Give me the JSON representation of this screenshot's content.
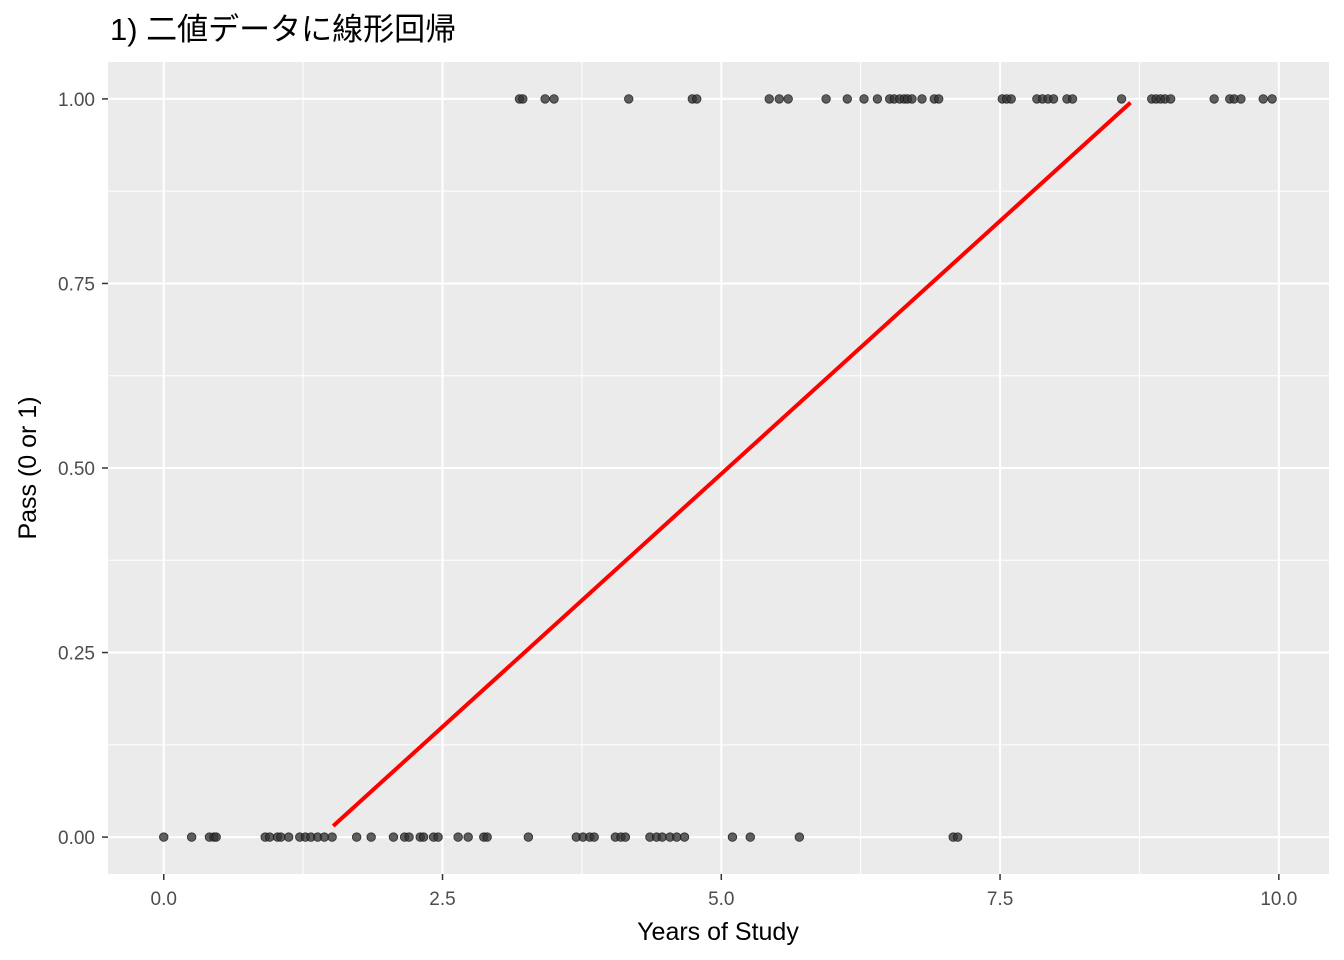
{
  "chart_data": {
    "type": "scatter",
    "title": "1) 二値データに線形回帰",
    "xlabel": "Years of Study",
    "ylabel": "Pass (0 or 1)",
    "xlim": [
      -0.5,
      10.45
    ],
    "ylim": [
      -0.05,
      1.05
    ],
    "x_ticks": [
      0,
      2.5,
      5,
      7.5,
      10
    ],
    "x_tick_labels": [
      "0.0",
      "2.5",
      "5.0",
      "7.5",
      "10.0"
    ],
    "y_ticks": [
      0,
      0.25,
      0.5,
      0.75,
      1
    ],
    "y_tick_labels": [
      "0.00",
      "0.25",
      "0.50",
      "0.75",
      "1.00"
    ],
    "grid": true,
    "legend": "none",
    "colors": {
      "panel": "#ebebeb",
      "grid": "#ffffff",
      "points": "#333333",
      "fit_line": "#ff0000"
    },
    "series": [
      {
        "type": "scatter",
        "points": [
          [
            0.0,
            0
          ],
          [
            0.25,
            0
          ],
          [
            0.41,
            0
          ],
          [
            0.45,
            0
          ],
          [
            0.47,
            0
          ],
          [
            0.91,
            0
          ],
          [
            0.95,
            0
          ],
          [
            1.02,
            0
          ],
          [
            1.05,
            0
          ],
          [
            1.12,
            0
          ],
          [
            1.22,
            0
          ],
          [
            1.27,
            0
          ],
          [
            1.32,
            0
          ],
          [
            1.38,
            0
          ],
          [
            1.44,
            0
          ],
          [
            1.51,
            0
          ],
          [
            1.73,
            0
          ],
          [
            1.86,
            0
          ],
          [
            2.06,
            0
          ],
          [
            2.16,
            0
          ],
          [
            2.2,
            0
          ],
          [
            2.3,
            0
          ],
          [
            2.33,
            0
          ],
          [
            2.42,
            0
          ],
          [
            2.46,
            0
          ],
          [
            2.64,
            0
          ],
          [
            2.73,
            0
          ],
          [
            2.87,
            0
          ],
          [
            2.9,
            0
          ],
          [
            3.27,
            0
          ],
          [
            3.7,
            0
          ],
          [
            3.76,
            0
          ],
          [
            3.82,
            0
          ],
          [
            3.86,
            0
          ],
          [
            4.05,
            0
          ],
          [
            4.1,
            0
          ],
          [
            4.14,
            0
          ],
          [
            4.36,
            0
          ],
          [
            4.42,
            0
          ],
          [
            4.47,
            0
          ],
          [
            4.54,
            0
          ],
          [
            4.6,
            0
          ],
          [
            4.67,
            0
          ],
          [
            5.1,
            0
          ],
          [
            5.26,
            0
          ],
          [
            5.7,
            0
          ],
          [
            7.08,
            0
          ],
          [
            7.12,
            0
          ],
          [
            3.19,
            1
          ],
          [
            3.22,
            1
          ],
          [
            3.42,
            1
          ],
          [
            3.5,
            1
          ],
          [
            4.17,
            1
          ],
          [
            4.74,
            1
          ],
          [
            4.78,
            1
          ],
          [
            5.43,
            1
          ],
          [
            5.52,
            1
          ],
          [
            5.6,
            1
          ],
          [
            5.94,
            1
          ],
          [
            6.13,
            1
          ],
          [
            6.28,
            1
          ],
          [
            6.4,
            1
          ],
          [
            6.51,
            1
          ],
          [
            6.55,
            1
          ],
          [
            6.6,
            1
          ],
          [
            6.64,
            1
          ],
          [
            6.67,
            1
          ],
          [
            6.71,
            1
          ],
          [
            6.8,
            1
          ],
          [
            6.91,
            1
          ],
          [
            6.95,
            1
          ],
          [
            7.52,
            1
          ],
          [
            7.56,
            1
          ],
          [
            7.6,
            1
          ],
          [
            7.83,
            1
          ],
          [
            7.88,
            1
          ],
          [
            7.93,
            1
          ],
          [
            7.98,
            1
          ],
          [
            8.1,
            1
          ],
          [
            8.15,
            1
          ],
          [
            8.59,
            1
          ],
          [
            8.86,
            1
          ],
          [
            8.9,
            1
          ],
          [
            8.94,
            1
          ],
          [
            8.98,
            1
          ],
          [
            9.03,
            1
          ],
          [
            9.42,
            1
          ],
          [
            9.56,
            1
          ],
          [
            9.6,
            1
          ],
          [
            9.66,
            1
          ],
          [
            9.86,
            1
          ],
          [
            9.94,
            1
          ]
        ]
      },
      {
        "type": "line",
        "points": [
          [
            1.52,
            0.015
          ],
          [
            8.67,
            0.995
          ]
        ]
      }
    ]
  }
}
